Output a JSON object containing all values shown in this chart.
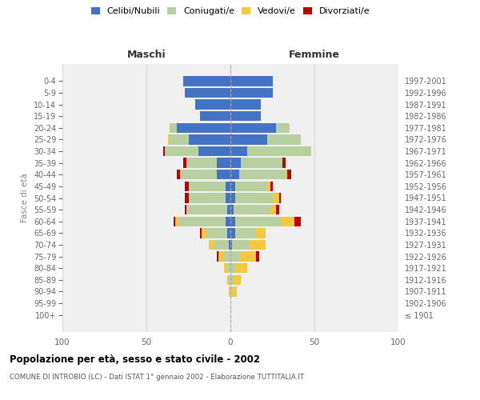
{
  "age_groups": [
    "100+",
    "95-99",
    "90-94",
    "85-89",
    "80-84",
    "75-79",
    "70-74",
    "65-69",
    "60-64",
    "55-59",
    "50-54",
    "45-49",
    "40-44",
    "35-39",
    "30-34",
    "25-29",
    "20-24",
    "15-19",
    "10-14",
    "5-9",
    "0-4"
  ],
  "birth_years": [
    "≤ 1901",
    "1902-1906",
    "1907-1911",
    "1912-1916",
    "1917-1921",
    "1922-1926",
    "1927-1931",
    "1932-1936",
    "1937-1941",
    "1942-1946",
    "1947-1951",
    "1952-1956",
    "1957-1961",
    "1962-1966",
    "1967-1971",
    "1972-1976",
    "1977-1981",
    "1982-1986",
    "1987-1991",
    "1992-1996",
    "1997-2001"
  ],
  "colors": {
    "celibi": "#4472c4",
    "coniugati": "#b8cfa0",
    "vedovi": "#f5c842",
    "divorziati": "#c00000"
  },
  "maschi": {
    "celibi": [
      0,
      0,
      0,
      0,
      0,
      0,
      1,
      2,
      3,
      2,
      3,
      3,
      8,
      8,
      19,
      25,
      32,
      18,
      21,
      27,
      28
    ],
    "coniugati": [
      0,
      0,
      0,
      1,
      2,
      4,
      9,
      13,
      28,
      24,
      22,
      22,
      22,
      18,
      20,
      11,
      4,
      0,
      0,
      0,
      0
    ],
    "vedovi": [
      0,
      0,
      1,
      1,
      2,
      3,
      3,
      2,
      2,
      0,
      0,
      0,
      0,
      0,
      0,
      1,
      0,
      0,
      0,
      0,
      0
    ],
    "divorziati": [
      0,
      0,
      0,
      0,
      0,
      1,
      0,
      1,
      1,
      1,
      2,
      2,
      2,
      2,
      1,
      0,
      0,
      0,
      0,
      0,
      0
    ]
  },
  "femmine": {
    "celibi": [
      0,
      0,
      0,
      0,
      0,
      0,
      1,
      3,
      3,
      2,
      3,
      3,
      5,
      6,
      10,
      22,
      27,
      18,
      18,
      25,
      25
    ],
    "coniugati": [
      0,
      0,
      1,
      2,
      3,
      5,
      10,
      12,
      27,
      22,
      22,
      19,
      28,
      25,
      38,
      20,
      8,
      0,
      0,
      0,
      0
    ],
    "vedovi": [
      0,
      0,
      3,
      4,
      7,
      10,
      10,
      6,
      8,
      3,
      4,
      2,
      1,
      0,
      0,
      0,
      0,
      0,
      0,
      0,
      0
    ],
    "divorziati": [
      0,
      0,
      0,
      0,
      0,
      2,
      0,
      0,
      4,
      2,
      1,
      1,
      2,
      2,
      0,
      0,
      0,
      0,
      0,
      0,
      0
    ]
  },
  "xlim": [
    -100,
    100
  ],
  "xticks": [
    -100,
    -50,
    0,
    50,
    100
  ],
  "xticklabels": [
    "100",
    "50",
    "0",
    "50",
    "100"
  ],
  "title": "Popolazione per età, sesso e stato civile - 2002",
  "subtitle": "COMUNE DI INTROBIO (LC) - Dati ISTAT 1° gennaio 2002 - Elaborazione TUTTITALIA.IT",
  "ylabel_left": "Fasce di età",
  "label_maschi": "Maschi",
  "label_femmine": "Femmine",
  "legend_labels": [
    "Celibi/Nubili",
    "Coniugati/e",
    "Vedovi/e",
    "Divorziati/e"
  ],
  "bg_color": "#f0f0f0",
  "grid_color": "#d0d0d0"
}
